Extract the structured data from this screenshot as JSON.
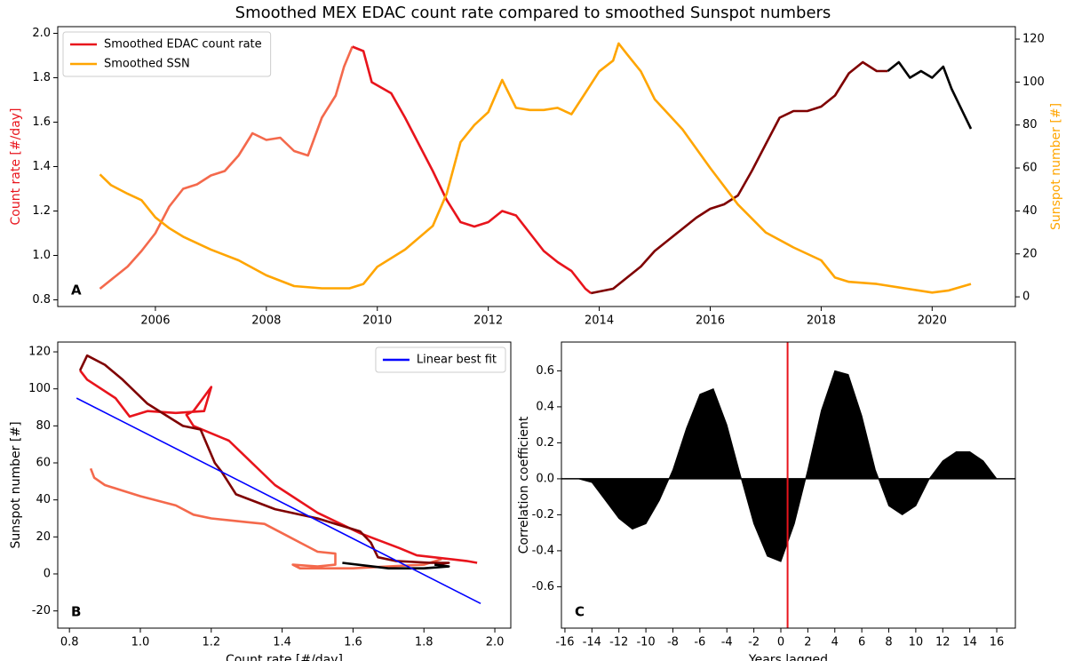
{
  "title": "Smoothed MEX EDAC count rate compared to smoothed Sunspot numbers",
  "chart_data": [
    {
      "type": "line",
      "annotation": "A",
      "ylabel": "Count rate [#/day]",
      "ylabel_color": "#e8141c",
      "y2label": "Sunspot number [#]",
      "y2label_color": "#ffa500",
      "xlim": [
        2004.24,
        2021.5
      ],
      "xticks": [
        2006,
        2008,
        2010,
        2012,
        2014,
        2016,
        2018,
        2020
      ],
      "ylim": [
        0.77,
        2.03
      ],
      "yticks": [
        0.8,
        {
          "value": 1,
          "label": "1.0"
        },
        1.2,
        1.4,
        1.6,
        1.8,
        {
          "value": 2,
          "label": "2.0"
        }
      ],
      "y2lim": [
        -4.5,
        125.8
      ],
      "y2ticks": [
        0,
        20,
        40,
        60,
        80,
        100,
        120
      ],
      "legend": "upper left",
      "series": [
        {
          "color": "#f4694c",
          "x": [
            2005.0,
            2005.5,
            2005.75,
            2006.0,
            2006.25,
            2006.5,
            2006.75,
            2007.0,
            2007.25,
            2007.5,
            2007.75,
            2008.0,
            2008.25,
            2008.5,
            2008.75,
            2009.0,
            2009.25,
            2009.4,
            2009.55
          ],
          "values": [
            0.85,
            0.95,
            1.02,
            1.1,
            1.22,
            1.3,
            1.32,
            1.36,
            1.38,
            1.45,
            1.55,
            1.52,
            1.53,
            1.47,
            1.45,
            1.62,
            1.72,
            1.85,
            1.94
          ]
        },
        {
          "name": "Smoothed EDAC count rate",
          "color": "#e8141c",
          "x": [
            2009.55,
            2009.75,
            2009.9,
            2010.25,
            2010.5,
            2010.75,
            2011.0,
            2011.25,
            2011.5,
            2011.75,
            2012.0,
            2012.25,
            2012.5,
            2012.75,
            2013.0,
            2013.25,
            2013.5,
            2013.75,
            2013.85
          ],
          "values": [
            1.94,
            1.92,
            1.78,
            1.73,
            1.62,
            1.5,
            1.38,
            1.25,
            1.15,
            1.13,
            1.15,
            1.2,
            1.18,
            1.1,
            1.02,
            0.97,
            0.93,
            0.85,
            0.83
          ]
        },
        {
          "color": "#7f0000",
          "x": [
            2013.85,
            2014.25,
            2014.5,
            2014.75,
            2015.0,
            2015.25,
            2015.5,
            2015.75,
            2016.0,
            2016.25,
            2016.5,
            2016.75,
            2017.0,
            2017.25,
            2017.5,
            2017.75,
            2018.0,
            2018.25,
            2018.5,
            2018.75,
            2019.0,
            2019.2
          ],
          "values": [
            0.83,
            0.85,
            0.9,
            0.95,
            1.02,
            1.07,
            1.12,
            1.17,
            1.21,
            1.23,
            1.27,
            1.38,
            1.5,
            1.62,
            1.65,
            1.65,
            1.67,
            1.72,
            1.82,
            1.87,
            1.83,
            1.83
          ]
        },
        {
          "color": "#000000",
          "x": [
            2019.2,
            2019.4,
            2019.6,
            2019.8,
            2020.0,
            2020.2,
            2020.35,
            2020.7
          ],
          "values": [
            1.83,
            1.87,
            1.8,
            1.83,
            1.8,
            1.85,
            1.75,
            1.57
          ]
        },
        {
          "name": "Smoothed SSN",
          "color": "#ffa500",
          "axis": "y2",
          "x": [
            2005.0,
            2005.2,
            2005.5,
            2005.75,
            2006.0,
            2006.25,
            2006.5,
            2007.0,
            2007.5,
            2008.0,
            2008.5,
            2009.0,
            2009.5,
            2009.75,
            2010.0,
            2010.5,
            2011.0,
            2011.25,
            2011.5,
            2011.75,
            2012.0,
            2012.25,
            2012.5,
            2012.75,
            2013.0,
            2013.25,
            2013.5,
            2013.75,
            2014.0,
            2014.25,
            2014.35,
            2014.5,
            2014.75,
            2015.0,
            2015.5,
            2016.0,
            2016.5,
            2017.0,
            2017.5,
            2018.0,
            2018.25,
            2018.5,
            2019.0,
            2019.5,
            2020.0,
            2020.3,
            2020.7
          ],
          "values": [
            57,
            52,
            48,
            45,
            37,
            32,
            28,
            22,
            17,
            10,
            5,
            4,
            4,
            6,
            14,
            22,
            33,
            48,
            72,
            80,
            86,
            101,
            88,
            87,
            87,
            88,
            85,
            95,
            105,
            110,
            118,
            113,
            105,
            92,
            78,
            60,
            43,
            30,
            23,
            17,
            9,
            7,
            6,
            4,
            2,
            3,
            6
          ]
        }
      ]
    },
    {
      "type": "line",
      "annotation": "B",
      "xlabel": "Count rate [#/day]",
      "ylabel": "Sunspot number [#]",
      "xlim": [
        0.767,
        2.045
      ],
      "xticks": [
        0.8,
        {
          "value": 1,
          "label": "1.0"
        },
        1.2,
        1.4,
        1.6,
        1.8,
        {
          "value": 2,
          "label": "2.0"
        }
      ],
      "ylim": [
        -29.3,
        125.3
      ],
      "yticks": [
        -20,
        0,
        20,
        40,
        60,
        80,
        100,
        120
      ],
      "legend": "upper right",
      "series": [
        {
          "color": "#f4694c",
          "x": [
            0.86,
            0.87,
            0.9,
            0.95,
            1.0,
            1.1,
            1.15,
            1.2,
            1.3,
            1.35,
            1.42,
            1.45,
            1.5,
            1.55,
            1.55,
            1.5,
            1.43,
            1.45,
            1.6,
            1.7,
            1.8,
            1.85
          ],
          "values": [
            57,
            52,
            48,
            45,
            42,
            37,
            32,
            30,
            28,
            27,
            20,
            17,
            12,
            11,
            5,
            4,
            5,
            3,
            3,
            4,
            5,
            8
          ]
        },
        {
          "color": "#e8141c",
          "x": [
            1.95,
            1.92,
            1.78,
            1.73,
            1.62,
            1.5,
            1.38,
            1.25,
            1.15,
            1.13,
            1.15,
            1.2,
            1.18,
            1.1,
            1.02,
            0.97,
            0.93,
            0.85,
            0.83
          ],
          "values": [
            6,
            7,
            10,
            14,
            22,
            33,
            48,
            72,
            80,
            86,
            88,
            101,
            88,
            87,
            88,
            85,
            95,
            105,
            110
          ]
        },
        {
          "color": "#7f0000",
          "x": [
            0.83,
            0.85,
            0.9,
            0.95,
            1.02,
            1.07,
            1.12,
            1.17,
            1.21,
            1.23,
            1.27,
            1.38,
            1.5,
            1.62,
            1.65,
            1.67,
            1.72,
            1.82,
            1.87,
            1.83
          ],
          "values": [
            110,
            118,
            113,
            105,
            92,
            86,
            80,
            78,
            60,
            55,
            43,
            35,
            30,
            23,
            17,
            9,
            7,
            6,
            6,
            5
          ]
        },
        {
          "color": "#000000",
          "x": [
            1.83,
            1.87,
            1.8,
            1.7,
            1.57
          ],
          "values": [
            5,
            4,
            3,
            3,
            6
          ]
        },
        {
          "name": "Linear best fit",
          "color": "#0000ff",
          "width": 1.6,
          "x": [
            0.82,
            1.96
          ],
          "values": [
            95,
            -16
          ]
        }
      ]
    },
    {
      "type": "area",
      "annotation": "C",
      "xlabel": "Years lagged",
      "ylabel": "Correlation coefficient",
      "xlim": [
        -16.26,
        17.38
      ],
      "xticks": [
        -16,
        -14,
        -12,
        -10,
        -8,
        -6,
        -4,
        -2,
        0,
        2,
        4,
        6,
        8,
        10,
        12,
        14,
        16
      ],
      "ylim": [
        -0.83,
        0.76
      ],
      "yticks": [
        -0.6,
        -0.4,
        -0.2,
        {
          "value": 0,
          "label": "0.0"
        },
        0.2,
        0.4,
        0.6
      ],
      "color": "#000000",
      "vline": 0.5,
      "vline_color": "#e8141c",
      "x": [
        -16,
        -15,
        -14,
        -13,
        -12,
        -11,
        -10,
        -9,
        -8,
        -7,
        -6,
        -5,
        -4,
        -3,
        -2,
        -1,
        0,
        1,
        2,
        3,
        4,
        5,
        6,
        7,
        8,
        9,
        10,
        11,
        12,
        13,
        14,
        15,
        16
      ],
      "values": [
        0,
        0,
        -0.02,
        -0.12,
        -0.22,
        -0.28,
        -0.25,
        -0.12,
        0.05,
        0.28,
        0.47,
        0.5,
        0.3,
        0.02,
        -0.25,
        -0.43,
        -0.46,
        -0.25,
        0.05,
        0.38,
        0.6,
        0.58,
        0.35,
        0.05,
        -0.15,
        -0.2,
        -0.15,
        0,
        0.1,
        0.15,
        0.15,
        0.1,
        0
      ]
    }
  ]
}
